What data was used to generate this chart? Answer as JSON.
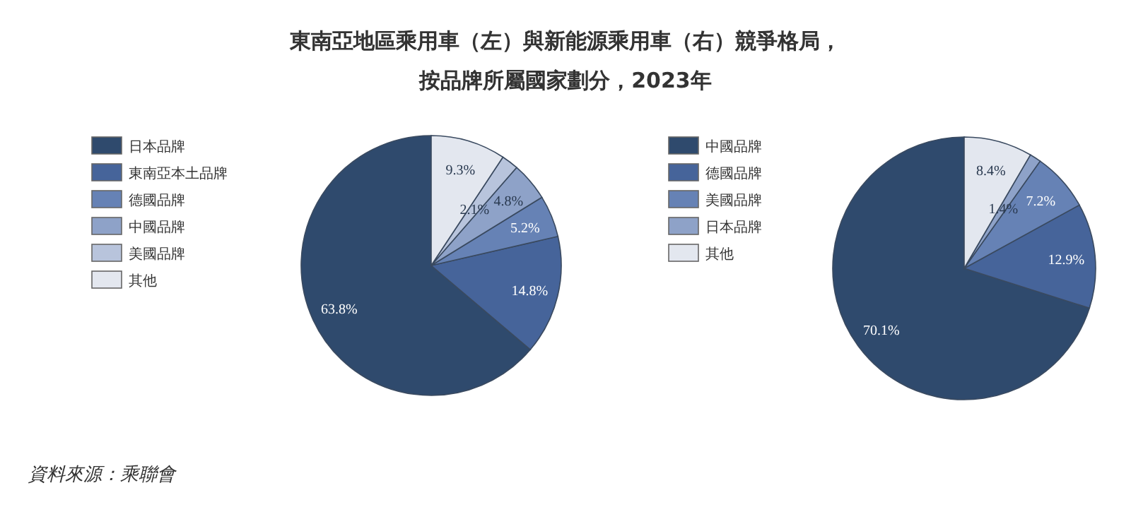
{
  "chart_data": [
    {
      "type": "pie",
      "title": "東南亞地區乘用車（左）與新能源乘用車（右）競爭格局，",
      "subtitle": "按品牌所屬國家劃分，2023年",
      "annotations": [
        "資料來源：乘聯會"
      ],
      "legend": "left",
      "categories": [
        "日本品牌",
        "東南亞本土品牌",
        "德國品牌",
        "中國品牌",
        "美國品牌",
        "其他"
      ],
      "values": [
        63.8,
        14.8,
        5.2,
        4.8,
        2.1,
        9.3
      ],
      "value_labels": [
        "63.8%",
        "14.8%",
        "5.2%",
        "4.8%",
        "2.1%",
        "9.3%"
      ],
      "colors": [
        "#2f4a6d",
        "#46649a",
        "#6682b5",
        "#8ea2c8",
        "#b8c4dc",
        "#e3e7ef"
      ]
    },
    {
      "type": "pie",
      "legend": "left",
      "categories": [
        "中國品牌",
        "德國品牌",
        "美國品牌",
        "日本品牌",
        "其他"
      ],
      "values": [
        70.1,
        12.9,
        7.2,
        1.4,
        8.4
      ],
      "value_labels": [
        "70.1%",
        "12.9%",
        "7.2%",
        "1.4%",
        "8.4%"
      ],
      "colors": [
        "#2f4a6d",
        "#46649a",
        "#6682b5",
        "#8ea2c8",
        "#e3e7ef"
      ]
    }
  ]
}
